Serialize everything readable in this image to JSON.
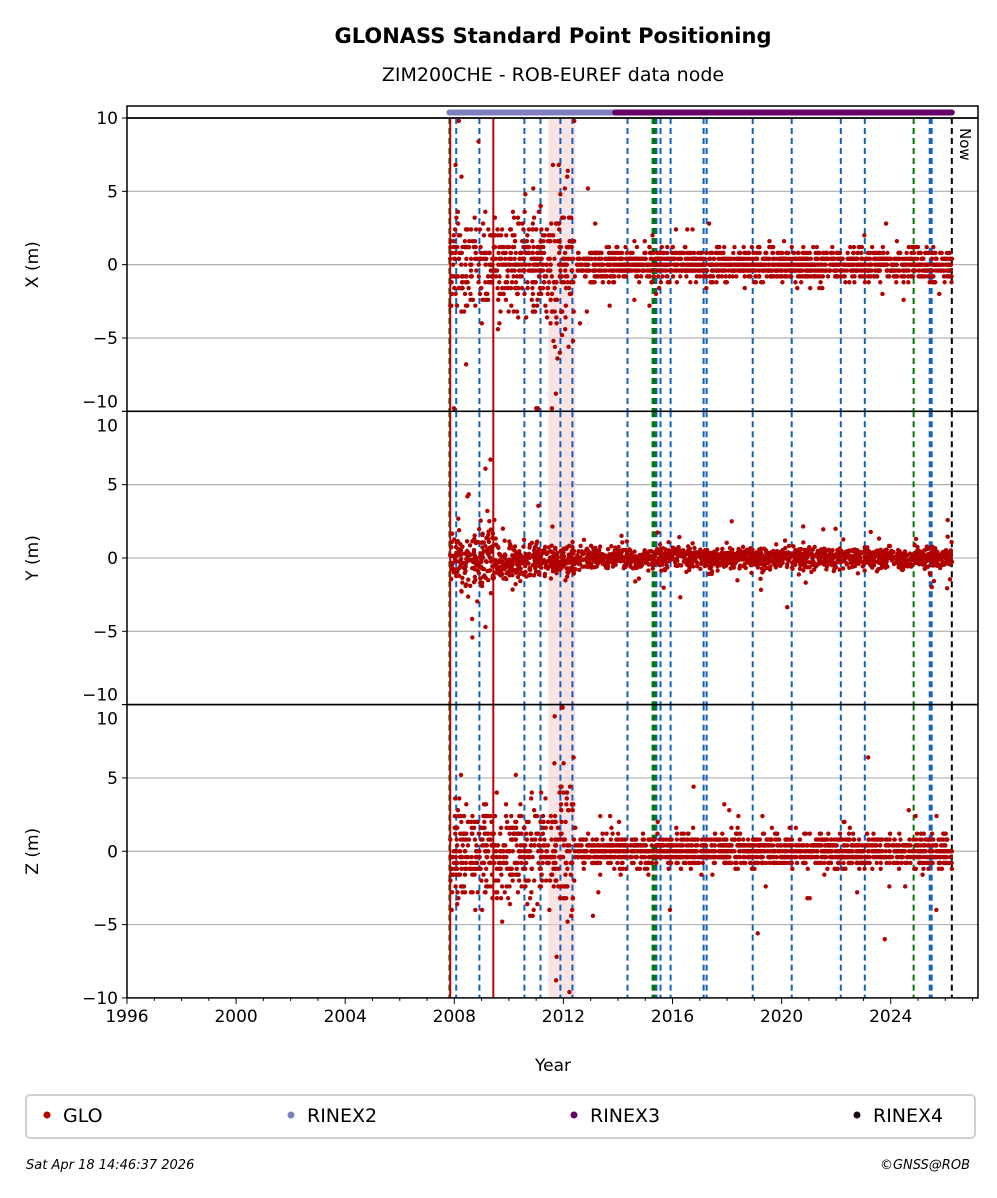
{
  "chart_data": {
    "type": "scatter",
    "title": "GLONASS Standard Point Positioning",
    "subtitle": "ZIM200CHE - ROB-EUREF data node",
    "xlabel": "Year",
    "xlim": [
      1996,
      2027.2
    ],
    "xticks": [
      1996,
      2000,
      2004,
      2008,
      2012,
      2016,
      2020,
      2024
    ],
    "panels": [
      {
        "ylabel": "X (m)",
        "ylim": [
          -10,
          10
        ],
        "yticks": [
          10,
          5,
          0,
          -5,
          -10
        ],
        "segments": [
          {
            "from": 2007.85,
            "to": 2011.6,
            "center": 0,
            "spread": 2.6
          },
          {
            "from": 2011.6,
            "to": 2012.45,
            "center": 0,
            "spread": 4.5
          },
          {
            "from": 2012.5,
            "to": 2026.25,
            "center": 0,
            "spread": 0.9
          }
        ]
      },
      {
        "ylabel": "Y (m)",
        "ylim": [
          -10,
          10
        ],
        "yticks": [
          10,
          5,
          0,
          -5,
          -10
        ],
        "segments": [
          {
            "from": 2007.85,
            "to": 2009.5,
            "center": 0,
            "spread": 1.8
          },
          {
            "from": 2009.5,
            "to": 2012.45,
            "center": -0.2,
            "spread": 0.9
          },
          {
            "from": 2012.5,
            "to": 2026.25,
            "center": 0,
            "spread": 0.6
          }
        ]
      },
      {
        "ylabel": "Z (m)",
        "ylim": [
          -10,
          10
        ],
        "yticks": [
          10,
          5,
          0,
          -5,
          -10
        ],
        "segments": [
          {
            "from": 2007.85,
            "to": 2011.6,
            "center": 0,
            "spread": 2.8
          },
          {
            "from": 2011.6,
            "to": 2012.45,
            "center": 0,
            "spread": 4.5
          },
          {
            "from": 2012.5,
            "to": 2026.25,
            "center": 0,
            "spread": 0.9
          }
        ]
      }
    ],
    "events_blue": [
      2008.07,
      2008.92,
      2010.57,
      2011.16,
      2011.89,
      2012.33,
      2014.35,
      2015.41,
      2015.56,
      2015.93,
      2017.14,
      2017.25,
      2018.94,
      2020.37,
      2022.17,
      2023.05,
      2025.43,
      2025.5
    ],
    "events_green": [
      2007.82,
      2015.27,
      2015.34,
      2024.84
    ],
    "events_red": [
      2007.85,
      2009.43
    ],
    "now": 2026.24,
    "now_label": "Now",
    "shaded": [
      [
        2011.45,
        2012.44
      ]
    ],
    "rinex_periods": [
      {
        "name": "RINEX2",
        "from": 2007.82,
        "to": 2013.9
      },
      {
        "name": "RINEX3",
        "from": 2013.9,
        "to": 2026.24
      }
    ],
    "legend": [
      {
        "label": "GLO",
        "color": "#b00000"
      },
      {
        "label": "RINEX2",
        "color": "#7f7fbf"
      },
      {
        "label": "RINEX3",
        "color": "#660066"
      },
      {
        "label": "RINEX4",
        "color": "#1a0a1a"
      }
    ],
    "legend_placement": "bottom",
    "timestamp": "Sat Apr 18 14:46:37 2026",
    "copyright": "©GNSS@ROB"
  }
}
